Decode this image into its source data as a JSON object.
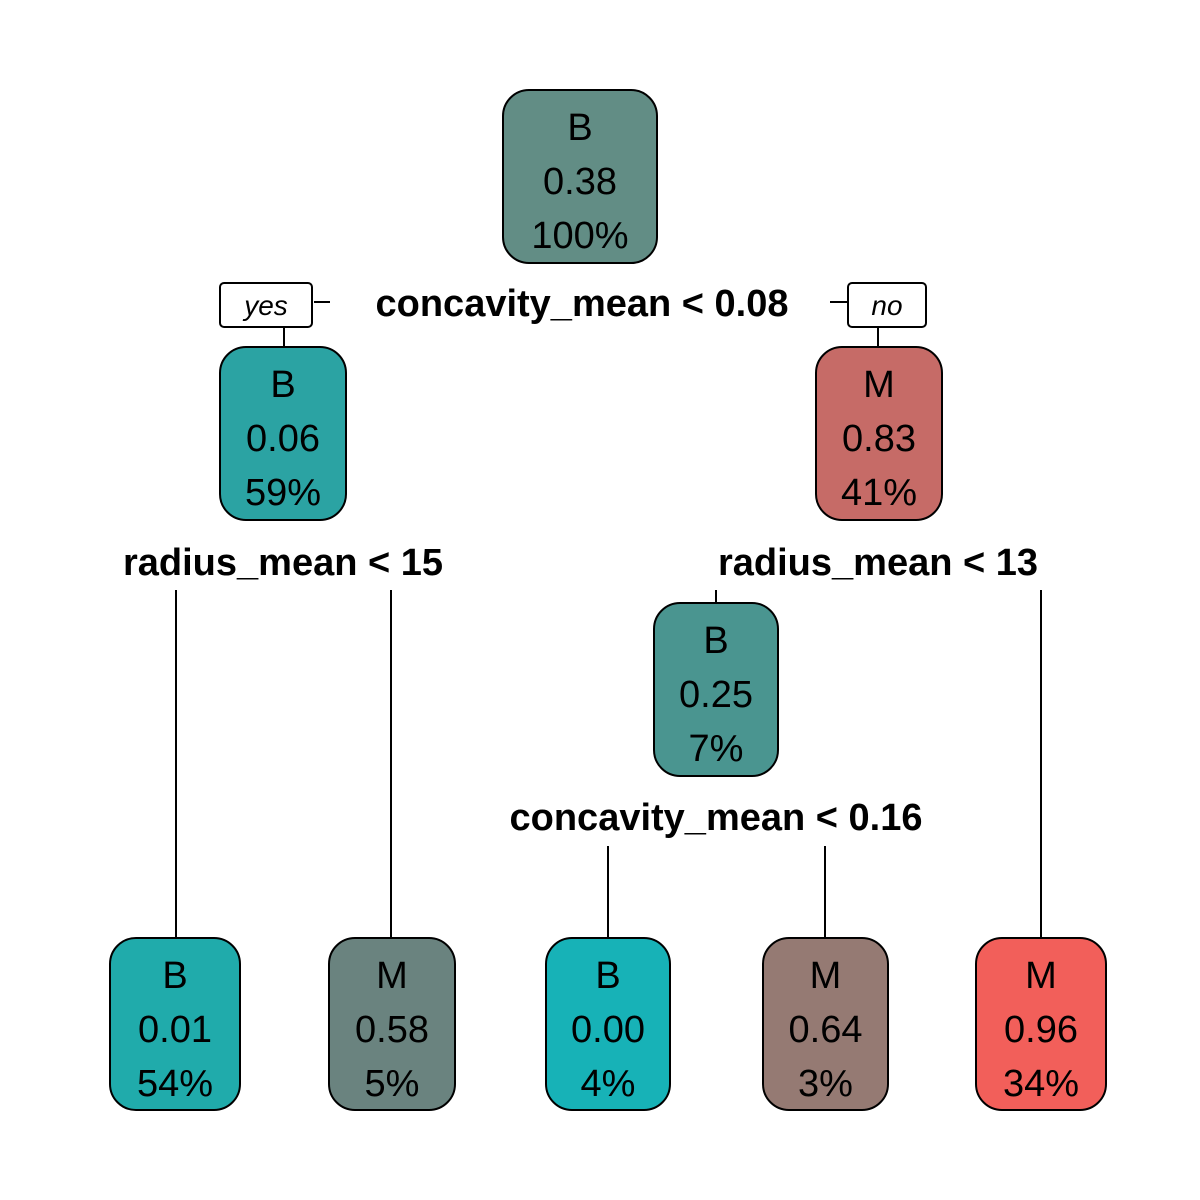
{
  "tree": {
    "branch_labels": {
      "yes": "yes",
      "no": "no"
    },
    "nodes": [
      {
        "id": "root",
        "class": "B",
        "prob": "0.38",
        "pct": "100%",
        "color": "#628d85"
      },
      {
        "id": "n2",
        "class": "B",
        "prob": "0.06",
        "pct": "59%",
        "color": "#2ba3a3"
      },
      {
        "id": "n3",
        "class": "M",
        "prob": "0.83",
        "pct": "41%",
        "color": "#c66b67"
      },
      {
        "id": "n7",
        "class": "B",
        "prob": "0.25",
        "pct": "7%",
        "color": "#4a9590"
      },
      {
        "id": "leaf1",
        "class": "B",
        "prob": "0.01",
        "pct": "54%",
        "color": "#20abab"
      },
      {
        "id": "leaf2",
        "class": "M",
        "prob": "0.58",
        "pct": "5%",
        "color": "#6a837f"
      },
      {
        "id": "leaf3",
        "class": "B",
        "prob": "0.00",
        "pct": "4%",
        "color": "#17b2b7"
      },
      {
        "id": "leaf4",
        "class": "M",
        "prob": "0.64",
        "pct": "3%",
        "color": "#957a73"
      },
      {
        "id": "leaf5",
        "class": "M",
        "prob": "0.96",
        "pct": "34%",
        "color": "#f25f5a"
      }
    ],
    "splits": [
      {
        "id": "s_root",
        "label": "concavity_mean < 0.08"
      },
      {
        "id": "s_n2",
        "label": "radius_mean < 15"
      },
      {
        "id": "s_n3",
        "label": "radius_mean < 13"
      },
      {
        "id": "s_n7",
        "label": "concavity_mean < 0.16"
      }
    ]
  }
}
